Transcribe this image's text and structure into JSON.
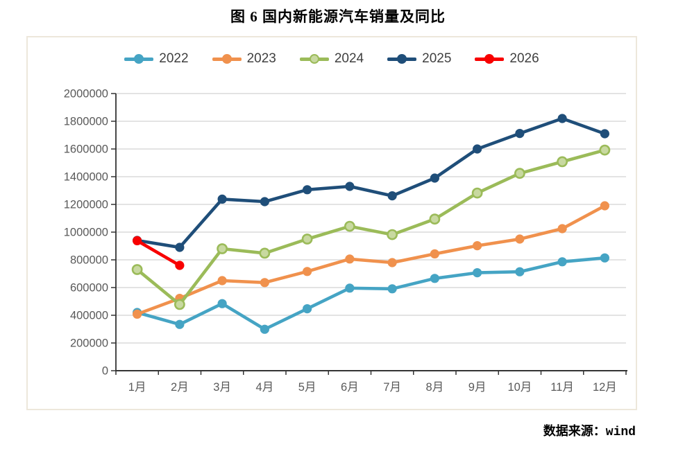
{
  "title": "图 6 国内新能源汽车销量及同比",
  "source": "数据来源：wind",
  "colors": {
    "gridline": "#DADADA",
    "axis_line": "#333333",
    "tick_label": "#595959",
    "legend_text": "#3F3F3F",
    "container_border": "#EDE7DB"
  },
  "chart_data": {
    "type": "line",
    "title": "图 6 国内新能源汽车销量及同比",
    "categories": [
      "1月",
      "2月",
      "3月",
      "4月",
      "5月",
      "6月",
      "7月",
      "8月",
      "9月",
      "10月",
      "11月",
      "12月"
    ],
    "series": [
      {
        "name": "2022",
        "color": "#45A4C4",
        "values": [
          420000,
          334000,
          484000,
          299000,
          447000,
          596000,
          591000,
          666000,
          707000,
          714000,
          786000,
          814000
        ]
      },
      {
        "name": "2023",
        "color": "#F0914D",
        "values": [
          408000,
          522000,
          650000,
          636000,
          716000,
          806000,
          780000,
          843000,
          902000,
          950000,
          1025000,
          1190000
        ]
      },
      {
        "name": "2024",
        "color": "#9BBB59",
        "marker_fill": "#C8D9A0",
        "values": [
          730000,
          478000,
          880000,
          848000,
          950000,
          1042000,
          982000,
          1094000,
          1282000,
          1424000,
          1508000,
          1592000
        ]
      },
      {
        "name": "2025",
        "color": "#1F4E79",
        "values": [
          940000,
          890000,
          1238000,
          1220000,
          1306000,
          1330000,
          1262000,
          1390000,
          1600000,
          1712000,
          1820000,
          1710000
        ]
      },
      {
        "name": "2026",
        "color": "#F80000",
        "values": [
          938000,
          760000,
          null,
          null,
          null,
          null,
          null,
          null,
          null,
          null,
          null,
          null
        ]
      }
    ],
    "xlabel": "",
    "ylabel": "",
    "ylim": [
      0,
      2000000
    ],
    "ytick_interval": 200000,
    "y_tick_labels": [
      "0",
      "200000",
      "400000",
      "600000",
      "800000",
      "1000000",
      "1200000",
      "1400000",
      "1600000",
      "1800000",
      "2000000"
    ],
    "grid": true,
    "legend_position": "top"
  }
}
